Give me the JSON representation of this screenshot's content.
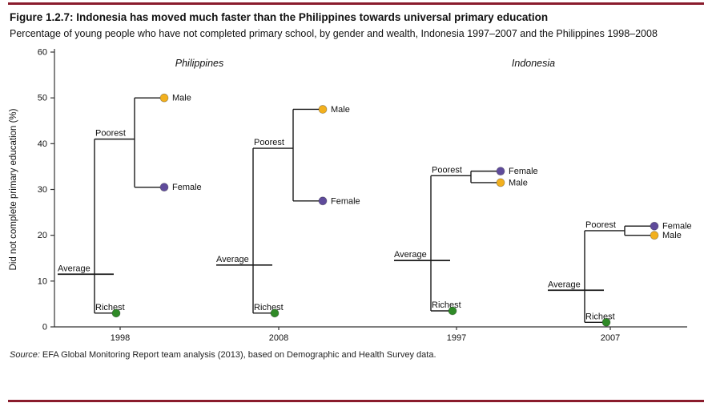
{
  "header": {
    "title": "Figure 1.2.7: Indonesia has moved much faster than the Philippines towards universal primary education",
    "subtitle": "Percentage of young people who have not completed primary school, by gender and wealth, Indonesia 1997–2007 and the Philippines 1998–2008"
  },
  "source": {
    "prefix": "Source:",
    "text": "EFA Global Monitoring Report team analysis (2013), based on Demographic and Health Survey data."
  },
  "colors": {
    "rule": "#8A1C2C",
    "line": "#1A1A1A",
    "axis": "#333333",
    "male": "#F2B01E",
    "female": "#5F4B9B",
    "richest": "#2F8A27"
  },
  "chart_data": {
    "type": "scatter",
    "title": "Percentage of young people who have not completed primary school, by gender and wealth",
    "ylabel": "Did not complete primary education (%)",
    "xlabel": "",
    "ylim": [
      0,
      60
    ],
    "yticks": [
      0,
      10,
      20,
      30,
      40,
      50,
      60
    ],
    "grid": false,
    "point_labels": {
      "average": "Average",
      "poorest": "Poorest",
      "richest": "Richest",
      "male": "Male",
      "female": "Female"
    },
    "panels": [
      {
        "label": "Philippines",
        "groups": [
          {
            "year": "1998",
            "average": 11.5,
            "poorest": 41,
            "richest": 3,
            "male": 50,
            "female": 30.5
          },
          {
            "year": "2008",
            "average": 13.5,
            "poorest": 39,
            "richest": 3,
            "male": 47.5,
            "female": 27.5
          }
        ]
      },
      {
        "label": "Indonesia",
        "groups": [
          {
            "year": "1997",
            "average": 14.5,
            "poorest": 33,
            "richest": 3.5,
            "male": 31.5,
            "female": 34
          },
          {
            "year": "2007",
            "average": 8,
            "poorest": 21,
            "richest": 1,
            "male": 20,
            "female": 22
          }
        ]
      }
    ]
  }
}
